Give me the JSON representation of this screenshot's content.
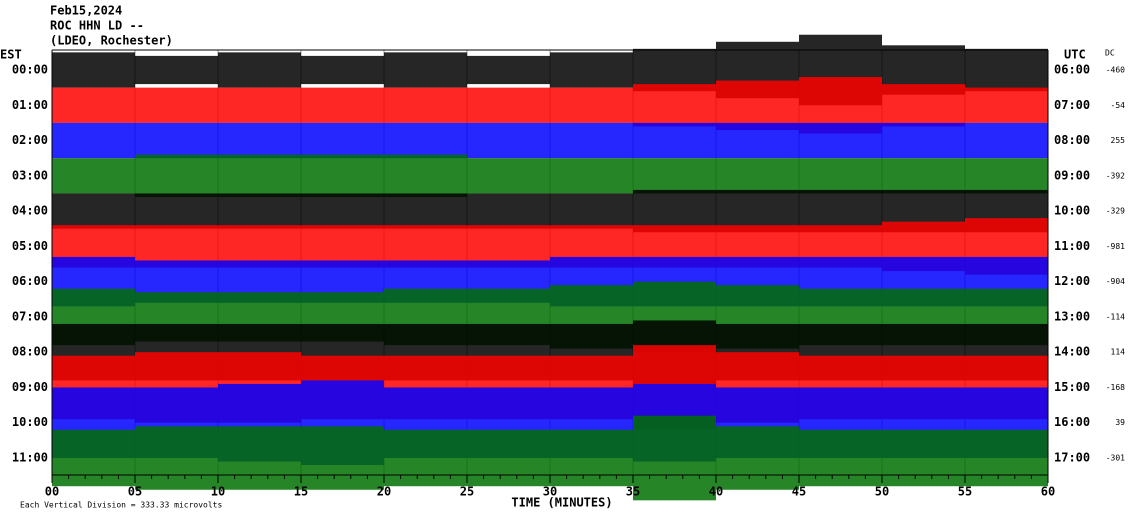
{
  "chart_data": {
    "type": "helicorder",
    "date": "Feb15,2024",
    "station": "ROC HHN LD --",
    "network": "(LDEO, Rochester)",
    "left_axis_title": "EST",
    "right_axis_title": "UTC",
    "dc_title": "DC",
    "xlabel": "TIME (MINUTES)",
    "scale_note": "Each Vertical Division =  333.33 microvolts",
    "xlim": [
      0,
      60
    ],
    "xticks": [
      {
        "value": 0,
        "label": "00"
      },
      {
        "value": 5,
        "label": "05"
      },
      10,
      15,
      20,
      25,
      30,
      35,
      40,
      45,
      50,
      55,
      60
    ],
    "grid": true,
    "segment_minutes": [
      0,
      5,
      10,
      15,
      20,
      25,
      30,
      35,
      40,
      45,
      50,
      55
    ],
    "traces": [
      {
        "est": "00:00",
        "utc": "06:00",
        "dc": -460,
        "color": "#000000",
        "values": [
          0.5,
          0.4,
          0.5,
          0.4,
          0.5,
          0.4,
          0.5,
          0.6,
          0.8,
          1.0,
          0.7,
          0.6
        ]
      },
      {
        "est": "01:00",
        "utc": "07:00",
        "dc": -54,
        "color": "#ff0000",
        "values": [
          0.5,
          0.5,
          0.5,
          0.5,
          0.5,
          0.5,
          0.5,
          0.6,
          0.7,
          0.8,
          0.6,
          0.5
        ]
      },
      {
        "est": "02:00",
        "utc": "08:00",
        "dc": 255,
        "color": "#0000ff",
        "values": [
          0.5,
          0.5,
          0.5,
          0.5,
          0.5,
          0.5,
          0.5,
          0.5,
          0.5,
          0.5,
          0.5,
          0.5
        ]
      },
      {
        "est": "03:00",
        "utc": "09:00",
        "dc": -392,
        "color": "#007000",
        "values": [
          0.5,
          0.6,
          0.6,
          0.6,
          0.6,
          0.5,
          0.5,
          0.5,
          0.5,
          0.5,
          0.5,
          0.5
        ]
      },
      {
        "est": "04:00",
        "utc": "10:00",
        "dc": -329,
        "color": "#000000",
        "values": [
          0.5,
          0.5,
          0.5,
          0.5,
          0.5,
          0.5,
          0.5,
          0.6,
          0.6,
          0.6,
          0.6,
          0.6
        ]
      },
      {
        "est": "05:00",
        "utc": "11:00",
        "dc": -981,
        "color": "#ff0000",
        "values": [
          0.6,
          0.6,
          0.6,
          0.6,
          0.6,
          0.6,
          0.6,
          0.6,
          0.6,
          0.6,
          0.7,
          0.8
        ]
      },
      {
        "est": "06:00",
        "utc": "12:00",
        "dc": -904,
        "color": "#0000ff",
        "values": [
          0.7,
          0.6,
          0.6,
          0.6,
          0.6,
          0.6,
          0.7,
          0.7,
          0.7,
          0.7,
          0.7,
          0.7
        ]
      },
      {
        "est": "07:00",
        "utc": "13:00",
        "dc": -114,
        "color": "#007000",
        "values": [
          0.8,
          0.7,
          0.7,
          0.7,
          0.8,
          0.8,
          0.9,
          1.0,
          0.9,
          0.8,
          0.8,
          0.8
        ]
      },
      {
        "est": "08:00",
        "utc": "14:00",
        "dc": 114,
        "color": "#000000",
        "values": [
          0.8,
          0.8,
          0.8,
          0.8,
          0.8,
          0.8,
          0.8,
          0.9,
          0.8,
          0.8,
          0.8,
          0.8
        ]
      },
      {
        "est": "09:00",
        "utc": "15:00",
        "dc": -168,
        "color": "#ff0000",
        "values": [
          0.9,
          1.0,
          1.0,
          0.9,
          0.9,
          0.9,
          0.9,
          1.2,
          1.0,
          0.9,
          0.9,
          0.9
        ]
      },
      {
        "est": "10:00",
        "utc": "16:00",
        "dc": 39,
        "color": "#0000ff",
        "values": [
          1.0,
          1.0,
          1.1,
          1.2,
          1.0,
          1.0,
          1.0,
          1.1,
          1.0,
          1.0,
          1.0,
          1.0
        ]
      },
      {
        "est": "11:00",
        "utc": "17:00",
        "dc": -301,
        "color": "#007000",
        "values": [
          0.8,
          0.9,
          0.9,
          0.9,
          0.8,
          0.8,
          0.8,
          1.2,
          0.9,
          0.8,
          0.8,
          0.8
        ]
      }
    ]
  }
}
